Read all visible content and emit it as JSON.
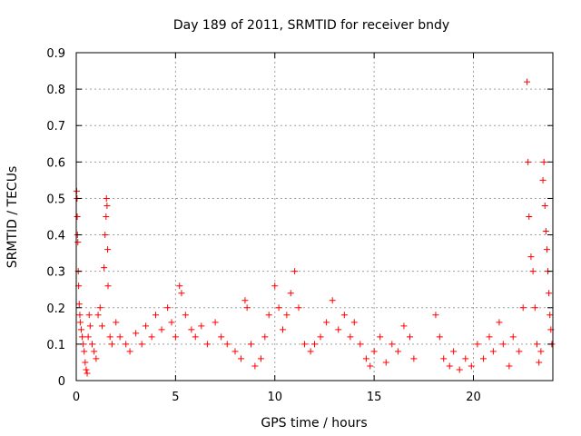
{
  "chart_data": {
    "type": "scatter",
    "title": "Day 189 of 2011, SRMTID for receiver bndy",
    "xlabel": "GPS time / hours",
    "ylabel": "SRMTID / TECUs",
    "xlim": [
      0,
      24
    ],
    "ylim": [
      0,
      0.9
    ],
    "xticks": [
      0,
      5,
      10,
      15,
      20
    ],
    "yticks": [
      0,
      0.1,
      0.2,
      0.3,
      0.4,
      0.5,
      0.6,
      0.7,
      0.8,
      0.9
    ],
    "xtick_labels": [
      "0",
      "5",
      "10",
      "15",
      "20"
    ],
    "ytick_labels": [
      "0",
      "0.1",
      "0.2",
      "0.3",
      "0.4",
      "0.5",
      "0.6",
      "0.7",
      "0.8",
      "0.9"
    ],
    "grid": true,
    "marker": "+",
    "series": [
      {
        "name": "SRMTID",
        "color": "#ff0000",
        "points": [
          [
            0.02,
            0.52
          ],
          [
            0.04,
            0.5
          ],
          [
            0.05,
            0.45
          ],
          [
            0.06,
            0.4
          ],
          [
            0.08,
            0.38
          ],
          [
            0.1,
            0.3
          ],
          [
            0.12,
            0.26
          ],
          [
            0.15,
            0.21
          ],
          [
            0.18,
            0.18
          ],
          [
            0.2,
            0.16
          ],
          [
            0.25,
            0.14
          ],
          [
            0.3,
            0.12
          ],
          [
            0.35,
            0.1
          ],
          [
            0.4,
            0.08
          ],
          [
            0.45,
            0.05
          ],
          [
            0.5,
            0.03
          ],
          [
            0.55,
            0.02
          ],
          [
            0.6,
            0.12
          ],
          [
            0.65,
            0.18
          ],
          [
            0.7,
            0.15
          ],
          [
            0.8,
            0.1
          ],
          [
            0.9,
            0.08
          ],
          [
            1.0,
            0.06
          ],
          [
            1.1,
            0.18
          ],
          [
            1.2,
            0.2
          ],
          [
            1.3,
            0.15
          ],
          [
            1.4,
            0.31
          ],
          [
            1.45,
            0.4
          ],
          [
            1.5,
            0.45
          ],
          [
            1.52,
            0.5
          ],
          [
            1.55,
            0.48
          ],
          [
            1.58,
            0.36
          ],
          [
            1.6,
            0.26
          ],
          [
            1.7,
            0.12
          ],
          [
            1.8,
            0.1
          ],
          [
            2.0,
            0.16
          ],
          [
            2.2,
            0.12
          ],
          [
            2.5,
            0.1
          ],
          [
            2.7,
            0.08
          ],
          [
            3.0,
            0.13
          ],
          [
            3.3,
            0.1
          ],
          [
            3.5,
            0.15
          ],
          [
            3.8,
            0.12
          ],
          [
            4.0,
            0.18
          ],
          [
            4.3,
            0.14
          ],
          [
            4.6,
            0.2
          ],
          [
            4.8,
            0.16
          ],
          [
            5.0,
            0.12
          ],
          [
            5.2,
            0.26
          ],
          [
            5.3,
            0.24
          ],
          [
            5.5,
            0.18
          ],
          [
            5.8,
            0.14
          ],
          [
            6.0,
            0.12
          ],
          [
            6.3,
            0.15
          ],
          [
            6.6,
            0.1
          ],
          [
            7.0,
            0.16
          ],
          [
            7.3,
            0.12
          ],
          [
            7.6,
            0.1
          ],
          [
            8.0,
            0.08
          ],
          [
            8.3,
            0.06
          ],
          [
            8.5,
            0.22
          ],
          [
            8.6,
            0.2
          ],
          [
            8.8,
            0.1
          ],
          [
            9.0,
            0.04
          ],
          [
            9.3,
            0.06
          ],
          [
            9.5,
            0.12
          ],
          [
            9.7,
            0.18
          ],
          [
            10.0,
            0.26
          ],
          [
            10.2,
            0.2
          ],
          [
            10.4,
            0.14
          ],
          [
            10.6,
            0.18
          ],
          [
            10.8,
            0.24
          ],
          [
            11.0,
            0.3
          ],
          [
            11.2,
            0.2
          ],
          [
            11.5,
            0.1
          ],
          [
            11.8,
            0.08
          ],
          [
            12.0,
            0.1
          ],
          [
            12.3,
            0.12
          ],
          [
            12.6,
            0.16
          ],
          [
            12.9,
            0.22
          ],
          [
            13.2,
            0.14
          ],
          [
            13.5,
            0.18
          ],
          [
            13.8,
            0.12
          ],
          [
            14.0,
            0.16
          ],
          [
            14.3,
            0.1
          ],
          [
            14.6,
            0.06
          ],
          [
            14.8,
            0.04
          ],
          [
            15.0,
            0.08
          ],
          [
            15.3,
            0.12
          ],
          [
            15.6,
            0.05
          ],
          [
            15.9,
            0.1
          ],
          [
            16.2,
            0.08
          ],
          [
            16.5,
            0.15
          ],
          [
            16.8,
            0.12
          ],
          [
            17.0,
            0.06
          ],
          [
            18.1,
            0.18
          ],
          [
            18.3,
            0.12
          ],
          [
            18.5,
            0.06
          ],
          [
            18.8,
            0.04
          ],
          [
            19.0,
            0.08
          ],
          [
            19.3,
            0.03
          ],
          [
            19.6,
            0.06
          ],
          [
            19.9,
            0.04
          ],
          [
            20.2,
            0.1
          ],
          [
            20.5,
            0.06
          ],
          [
            20.8,
            0.12
          ],
          [
            21.0,
            0.08
          ],
          [
            21.3,
            0.16
          ],
          [
            21.5,
            0.1
          ],
          [
            21.8,
            0.04
          ],
          [
            22.0,
            0.12
          ],
          [
            22.3,
            0.08
          ],
          [
            22.5,
            0.2
          ],
          [
            22.7,
            0.82
          ],
          [
            22.75,
            0.6
          ],
          [
            22.8,
            0.45
          ],
          [
            22.9,
            0.34
          ],
          [
            23.0,
            0.3
          ],
          [
            23.1,
            0.2
          ],
          [
            23.2,
            0.1
          ],
          [
            23.3,
            0.05
          ],
          [
            23.4,
            0.08
          ],
          [
            23.5,
            0.55
          ],
          [
            23.55,
            0.6
          ],
          [
            23.6,
            0.48
          ],
          [
            23.65,
            0.41
          ],
          [
            23.7,
            0.36
          ],
          [
            23.75,
            0.3
          ],
          [
            23.8,
            0.24
          ],
          [
            23.85,
            0.18
          ],
          [
            23.9,
            0.14
          ],
          [
            23.95,
            0.1
          ]
        ]
      }
    ]
  }
}
